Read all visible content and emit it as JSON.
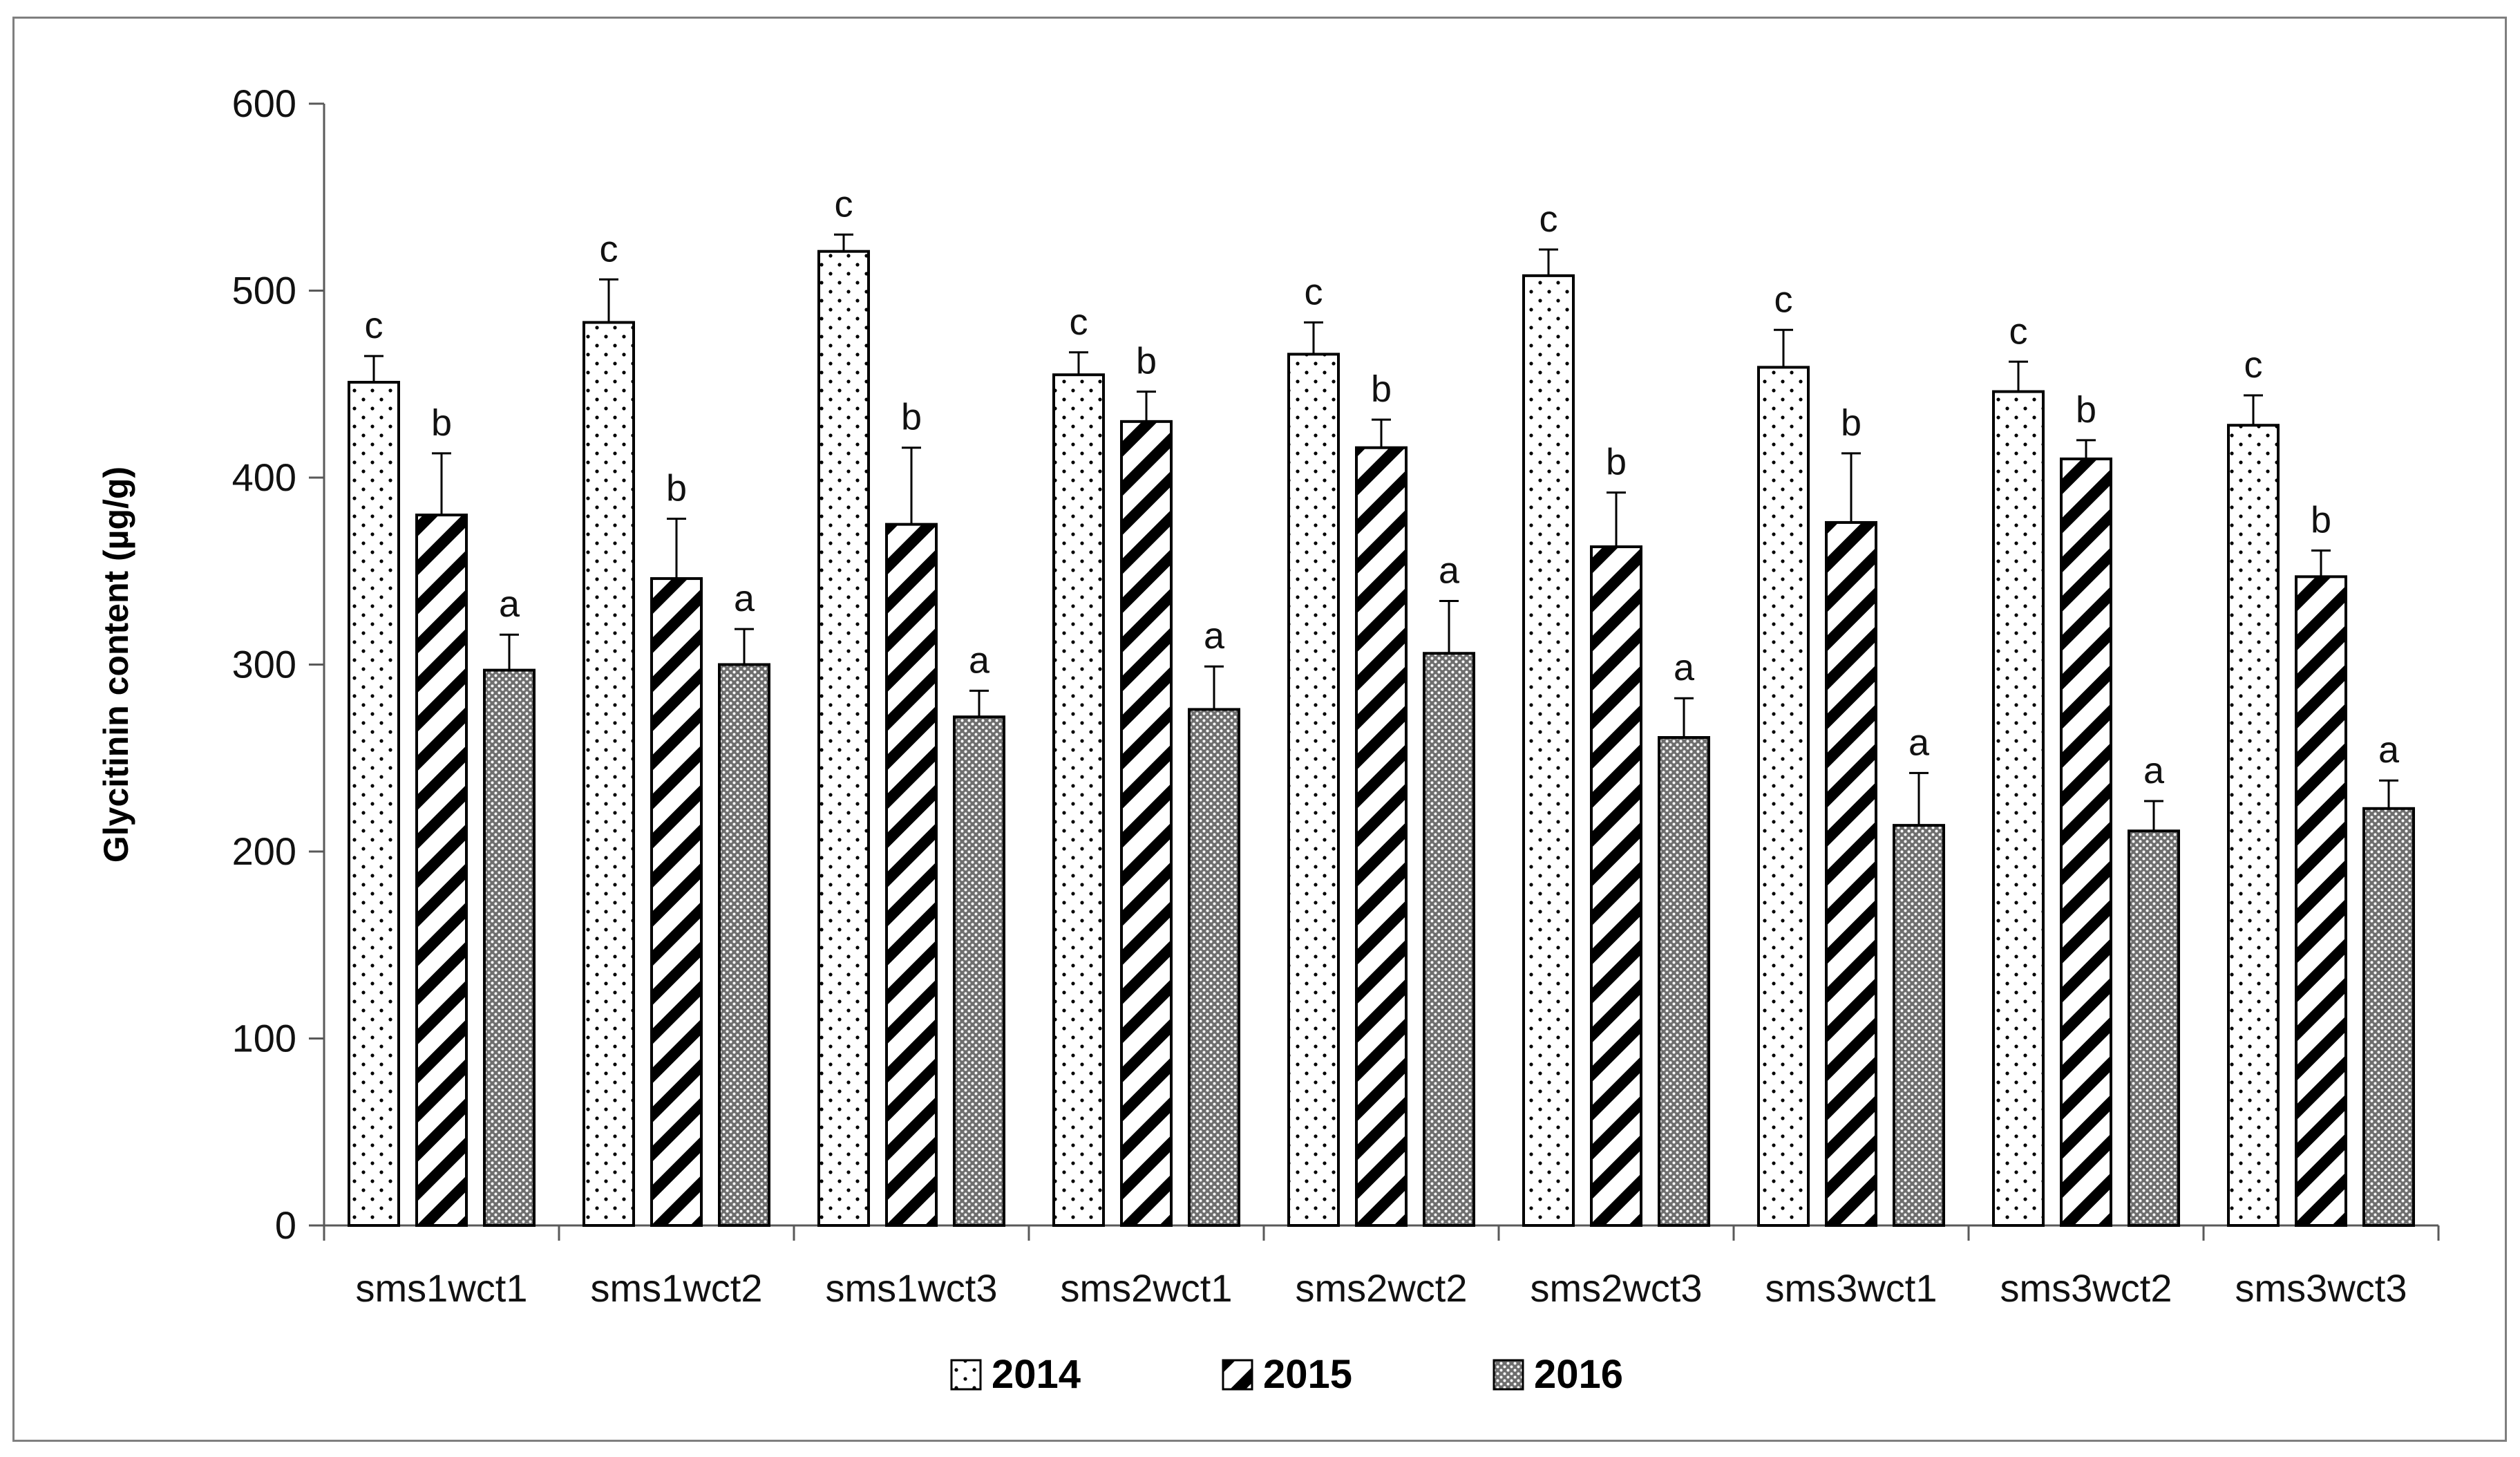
{
  "chart_data": {
    "type": "bar",
    "title": "",
    "xlabel": "",
    "ylabel": "Glycitinin content  (µg/g)",
    "ylim": [
      0,
      600
    ],
    "yticks": [
      0,
      100,
      200,
      300,
      400,
      500,
      600
    ],
    "grid": false,
    "legend_position": "bottom",
    "categories": [
      "sms1wct1",
      "sms1wct2",
      "sms1wct3",
      "sms2wct1",
      "sms2wct2",
      "sms2wct3",
      "sms3wct1",
      "sms3wct2",
      "sms3wct3"
    ],
    "series": [
      {
        "name": "2014",
        "pattern": "dots",
        "values": [
          451,
          483,
          521,
          455,
          466,
          508,
          459,
          446,
          428
        ],
        "errors": [
          14,
          23,
          9,
          12,
          17,
          14,
          20,
          16,
          16
        ],
        "labels": [
          "c",
          "c",
          "c",
          "c",
          "c",
          "c",
          "c",
          "c",
          "c"
        ]
      },
      {
        "name": "2015",
        "pattern": "diagonal-stripes",
        "values": [
          380,
          346,
          375,
          430,
          416,
          363,
          376,
          410,
          347
        ],
        "errors": [
          33,
          32,
          41,
          16,
          15,
          29,
          37,
          10,
          14
        ],
        "labels": [
          "b",
          "b",
          "b",
          "b",
          "b",
          "b",
          "b",
          "b",
          "b"
        ]
      },
      {
        "name": "2016",
        "pattern": "dense-dots",
        "values": [
          297,
          300,
          272,
          276,
          306,
          261,
          214,
          211,
          223
        ],
        "errors": [
          19,
          19,
          14,
          23,
          28,
          21,
          28,
          16,
          15
        ],
        "labels": [
          "a",
          "a",
          "a",
          "a",
          "a",
          "a",
          "a",
          "a",
          "a"
        ]
      }
    ]
  },
  "colors": {
    "bar_outline": "#000000",
    "bar_fill": "#ffffff",
    "axis": "#595959",
    "frame": "#7f7f7f"
  }
}
